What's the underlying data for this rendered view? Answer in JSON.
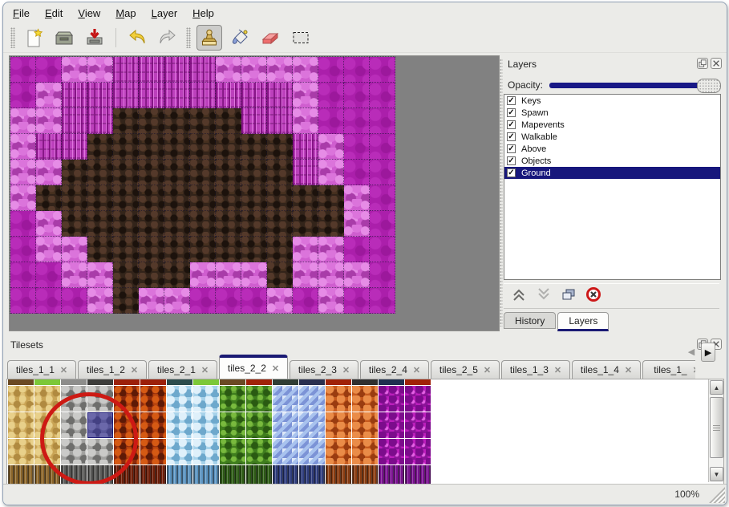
{
  "menu": {
    "items": [
      "File",
      "Edit",
      "View",
      "Map",
      "Layer",
      "Help"
    ]
  },
  "toolbar": {
    "buttons": [
      {
        "name": "new"
      },
      {
        "name": "open"
      },
      {
        "name": "save"
      },
      {
        "name": "undo"
      },
      {
        "name": "redo"
      },
      {
        "name": "stamp",
        "active": true
      },
      {
        "name": "fill"
      },
      {
        "name": "eraser"
      },
      {
        "name": "select"
      }
    ]
  },
  "layers_panel": {
    "title": "Layers",
    "opacity_label": "Opacity:",
    "opacity_value_percent": 100,
    "layers": [
      {
        "name": "Keys",
        "checked": true,
        "selected": false
      },
      {
        "name": "Spawn",
        "checked": true,
        "selected": false
      },
      {
        "name": "Mapevents",
        "checked": true,
        "selected": false
      },
      {
        "name": "Walkable",
        "checked": true,
        "selected": false
      },
      {
        "name": "Above",
        "checked": true,
        "selected": false
      },
      {
        "name": "Objects",
        "checked": true,
        "selected": false
      },
      {
        "name": "Ground",
        "checked": true,
        "selected": true
      }
    ],
    "check_glyph": "✓",
    "bottom_tabs": [
      {
        "label": "History",
        "active": false
      },
      {
        "label": "Layers",
        "active": true
      }
    ]
  },
  "tilesets_panel": {
    "title": "Tilesets",
    "close_glyph": "✕",
    "scroll_left_glyph": "◀",
    "scroll_right_glyph": "▶",
    "up_glyph": "▲",
    "down_glyph": "▼",
    "tabs": [
      {
        "label": "tiles_1_1",
        "active": false
      },
      {
        "label": "tiles_1_2",
        "active": false
      },
      {
        "label": "tiles_2_1",
        "active": false
      },
      {
        "label": "tiles_2_2",
        "active": true
      },
      {
        "label": "tiles_2_3",
        "active": false
      },
      {
        "label": "tiles_2_4",
        "active": false
      },
      {
        "label": "tiles_2_5",
        "active": false
      },
      {
        "label": "tiles_1_3",
        "active": false
      },
      {
        "label": "tiles_1_4",
        "active": false
      },
      {
        "label": "tiles_1_",
        "active": false,
        "truncated": true
      }
    ]
  },
  "map": {
    "cols": 15,
    "rows": 10,
    "tile_size": 32,
    "legend": {
      "A": "pink-scales",
      "B": "magenta-pillars",
      "C": "dark-magenta",
      "D": "brown-cave"
    },
    "grid": [
      "CCAABBBBAAAACCC",
      "CABBBBBBBBBACCC",
      "AABBDDDDDBBACCC",
      "ABBDDDDDDDDBACC",
      "AADDDDDDDDDBACC",
      "ADDDDDDDDDDDDAC",
      "CADDDDDDDDDDDAC",
      "CAADDDDDDDDAACC",
      "CCAADDDAAADAAAC",
      "CCCADAACCCACACC"
    ]
  },
  "tileset_grid": {
    "columns": [
      "sand",
      "sand",
      "stone",
      "stone",
      "lava",
      "lava",
      "ice",
      "ice",
      "vines",
      "vines",
      "crystal",
      "crystal",
      "bubbles",
      "bubbles",
      "cells",
      "cells"
    ],
    "top_strip_colors": [
      "#6b4a24",
      "#7cc838",
      "#8d8d8b",
      "#3c3c3a",
      "#9c200a",
      "#9c200a",
      "#2c4c4c",
      "#7cc838",
      "#6b4a24",
      "#a02208",
      "#303e34",
      "#2a3050",
      "#a02208",
      "#303030",
      "#203050",
      "#a02208"
    ],
    "full_rows": 3,
    "selected_tile": {
      "col": 3,
      "row": 1
    },
    "annotation": {
      "shape": "red-circle",
      "color": "#cd1a14"
    }
  },
  "status_bar": {
    "zoom_level": "100%"
  },
  "colors": {
    "accent_navy": "#1a1a74",
    "selection_navy": "#17177c",
    "opacity_track": "#181886",
    "canvas_bg": "#818181",
    "window_bg": "#ebebe8"
  },
  "icons": [
    "new-file-icon",
    "open-folder-icon",
    "save-icon",
    "undo-icon",
    "redo-icon",
    "stamp-icon",
    "fill-bucket-icon",
    "eraser-icon",
    "rect-select-icon",
    "float-panel-icon",
    "close-icon",
    "raise-layer-icon",
    "lower-layer-icon",
    "duplicate-layer-icon",
    "delete-layer-icon",
    "checkmark-icon",
    "tab-close-icon",
    "scroll-up-icon",
    "scroll-down-icon",
    "tab-scroll-left-icon",
    "tab-scroll-right-icon",
    "resize-grip"
  ]
}
